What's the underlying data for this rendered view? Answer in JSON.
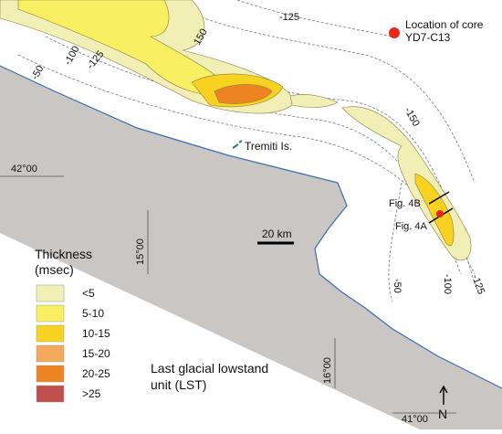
{
  "core_location": {
    "label_line1": "Location of core",
    "label_line2": "YD7-C13"
  },
  "place": "Tremiti Is.",
  "figure_lines": [
    "Fig. 4B",
    "Fig. 4A"
  ],
  "scale_bar": "20 km",
  "unit_label": {
    "line1": "Last glacial lowstand",
    "line2": "unit (LST)"
  },
  "north": "N",
  "coordinates": [
    "42°00",
    "15°00",
    "16°00",
    "41°00"
  ],
  "contours": [
    "-125",
    "150",
    "-50",
    "-100",
    "-125",
    "-150",
    "-50",
    "-100",
    "-125"
  ],
  "legend": {
    "title": "Thickness",
    "unit": "(msec)",
    "items": [
      {
        "label": "<5",
        "color": "#f1efb6"
      },
      {
        "label": "5-10",
        "color": "#f8ef63"
      },
      {
        "label": "10-15",
        "color": "#f8d220"
      },
      {
        "label": "15-20",
        "color": "#f3aa5a"
      },
      {
        "label": "20-25",
        "color": "#ef8422"
      },
      {
        "label": ">25",
        "color": "#c0504d"
      }
    ]
  }
}
